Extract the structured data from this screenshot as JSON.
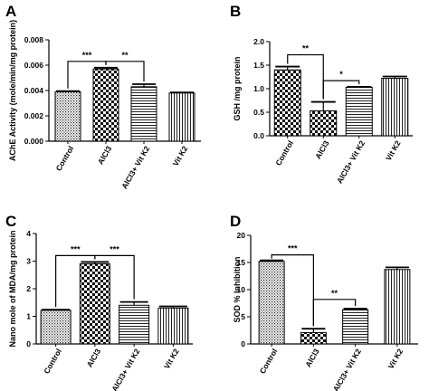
{
  "chart_data": [
    {
      "type": "bar",
      "panel_label": "A",
      "ylabel": "AChE Activity (mole/min/mg protein)",
      "categories": [
        "Control",
        "AlCl3",
        "AlCl3+ Vit K2",
        "Vit K2"
      ],
      "values": [
        0.0039,
        0.0057,
        0.0043,
        0.0038
      ],
      "errors": [
        5e-05,
        0.0001,
        0.0002,
        5e-05
      ],
      "patterns": [
        "dots",
        "checker",
        "hlines",
        "vlines"
      ],
      "ylim": [
        0,
        0.008
      ],
      "yticks": [
        "0.000",
        "0.002",
        "0.004",
        "0.006",
        "0.008"
      ],
      "ytick_values": [
        0,
        0.002,
        0.004,
        0.006,
        0.008
      ],
      "brackets": [
        {
          "from": 0,
          "to": 1,
          "level": 0.0063,
          "label": "***"
        },
        {
          "from": 1,
          "to": 2,
          "level": 0.0063,
          "label": "**"
        }
      ]
    },
    {
      "type": "bar",
      "panel_label": "B",
      "ylabel": "GSH /mg protein",
      "categories": [
        "Control",
        "AlCl3",
        "AlCl3+ Vit K2",
        "Vit K2"
      ],
      "values": [
        1.4,
        0.53,
        1.03,
        1.22
      ],
      "errors": [
        0.07,
        0.19,
        0.01,
        0.04
      ],
      "patterns": [
        "checker",
        "checker",
        "hlines",
        "vlines"
      ],
      "ylim": [
        0,
        2.0
      ],
      "yticks": [
        "0.0",
        "0.5",
        "1.0",
        "1.5",
        "2.0"
      ],
      "ytick_values": [
        0,
        0.5,
        1.0,
        1.5,
        2.0
      ],
      "brackets": [
        {
          "from": 0,
          "to": 1,
          "level": 1.72,
          "label": "**"
        },
        {
          "from": 1,
          "to": 2,
          "level": 1.17,
          "label": "*"
        }
      ]
    },
    {
      "type": "bar",
      "panel_label": "C",
      "ylabel": "Nano mole of MDA/mg protein",
      "categories": [
        "Control",
        "AlCl3",
        "AlCl3+ Vit K2",
        "Vit K2"
      ],
      "values": [
        1.22,
        2.9,
        1.4,
        1.3
      ],
      "errors": [
        0.02,
        0.07,
        0.12,
        0.06
      ],
      "patterns": [
        "dots",
        "checker",
        "hlines",
        "vlines"
      ],
      "ylim": [
        0,
        4
      ],
      "yticks": [
        "0",
        "1",
        "2",
        "3",
        "4"
      ],
      "ytick_values": [
        0,
        1,
        2,
        3,
        4
      ],
      "brackets": [
        {
          "from": 0,
          "to": 1,
          "level": 3.2,
          "label": "***"
        },
        {
          "from": 1,
          "to": 2,
          "level": 3.2,
          "label": "***"
        }
      ]
    },
    {
      "type": "bar",
      "panel_label": "D",
      "ylabel": "SOD % Inhibition",
      "categories": [
        "Control",
        "AlCl3",
        "AlCl3+ Vit K2",
        "Vit K2"
      ],
      "values": [
        15.2,
        2.1,
        6.3,
        13.7
      ],
      "errors": [
        0.2,
        0.7,
        0.2,
        0.4
      ],
      "patterns": [
        "dots",
        "checker",
        "hlines",
        "vlines"
      ],
      "ylim": [
        0,
        20
      ],
      "yticks": [
        "0",
        "5",
        "10",
        "15",
        "20"
      ],
      "ytick_values": [
        0,
        5,
        10,
        15,
        20
      ],
      "brackets": [
        {
          "from": 0,
          "to": 1,
          "level": 16.4,
          "label": "***"
        },
        {
          "from": 1,
          "to": 2,
          "level": 8.2,
          "label": "**"
        }
      ]
    }
  ]
}
